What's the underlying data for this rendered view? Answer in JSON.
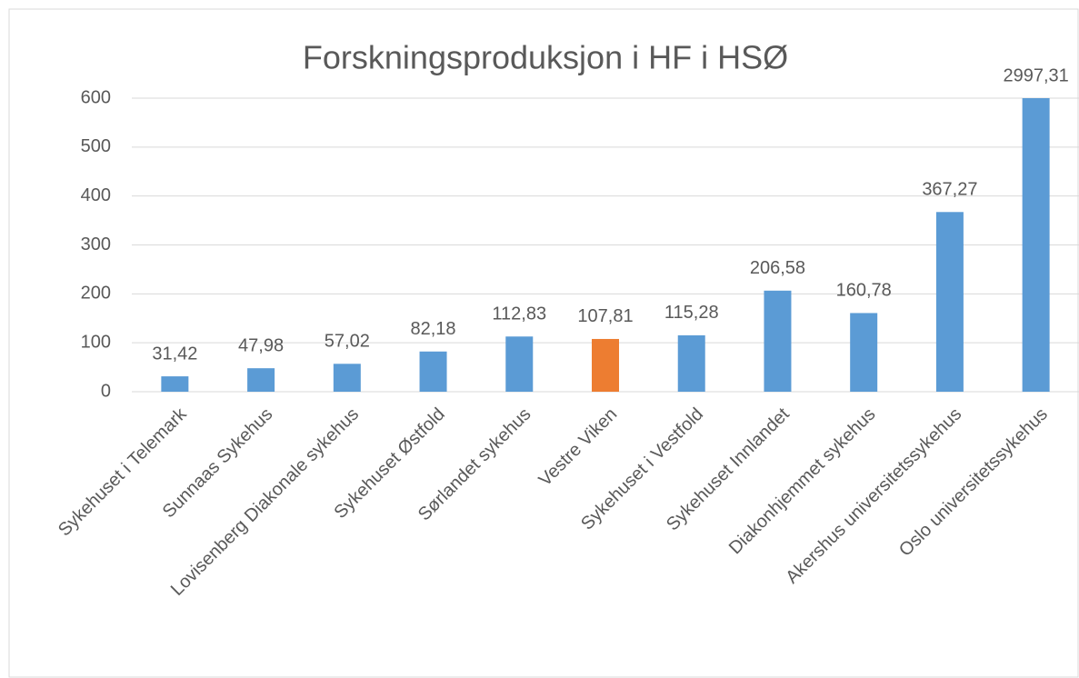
{
  "chart_data": {
    "type": "bar",
    "title": "Forskningsproduksjon i HF i HSØ",
    "categories": [
      "Sykehuset i Telemark",
      "Sunnaas Sykehus",
      "Lovisenberg Diakonale sykehus",
      "Sykehuset Østfold",
      "Sørlandet sykehus",
      "Vestre Viken",
      "Sykehuset i Vestfold",
      "Sykehuset Innlandet",
      "Diakonhjemmet sykehus",
      "Akershus universitetssykehus",
      "Oslo universitetssykehus"
    ],
    "values": [
      31.42,
      47.98,
      57.02,
      82.18,
      112.83,
      107.81,
      115.28,
      206.58,
      160.78,
      367.27,
      2997.31
    ],
    "value_labels": [
      "31,42",
      "47,98",
      "57,02",
      "82,18",
      "112,83",
      "107,81",
      "115,28",
      "206,58",
      "160,78",
      "367,27",
      "2997,31"
    ],
    "colors": [
      "#5b9bd5",
      "#5b9bd5",
      "#5b9bd5",
      "#5b9bd5",
      "#5b9bd5",
      "#ed7d31",
      "#5b9bd5",
      "#5b9bd5",
      "#5b9bd5",
      "#5b9bd5",
      "#5b9bd5"
    ],
    "ylim": [
      0,
      600
    ],
    "yticks": [
      0,
      100,
      200,
      300,
      400,
      500,
      600
    ],
    "grid": true
  }
}
